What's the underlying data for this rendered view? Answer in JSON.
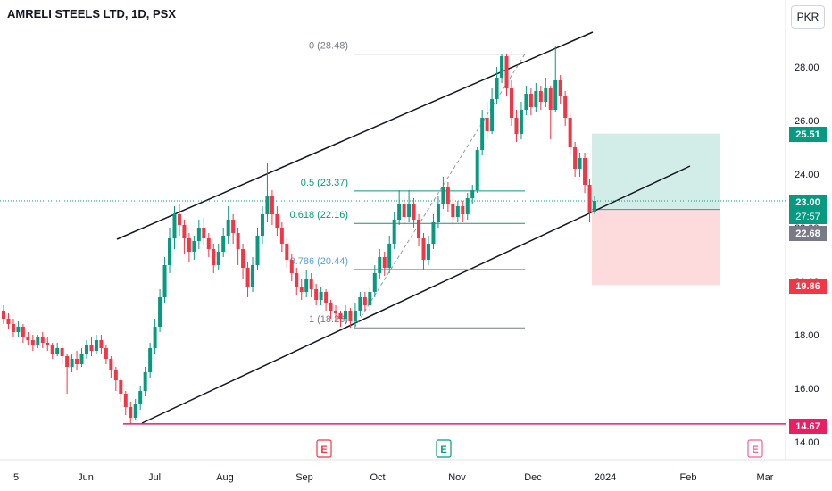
{
  "header": {
    "title": "AMRELI STEELS LTD, 1D, PSX",
    "currency_button": "PKR"
  },
  "chart_data": {
    "type": "candlestick",
    "title": "AMRELI STEELS LTD, 1D, PSX",
    "ylim": [
      13.5,
      30.2
    ],
    "y_ticks": [
      "14.00",
      "16.00",
      "18.00",
      "20.00",
      "22.00",
      "24.00",
      "26.00",
      "28.00"
    ],
    "x_ticks": [
      "5",
      "Jun",
      "Jul",
      "Aug",
      "Sep",
      "Oct",
      "Nov",
      "Dec",
      "2024",
      "Feb",
      "Mar"
    ],
    "candles": [
      [
        18.9,
        18.6,
        19.1,
        18.4
      ],
      [
        18.6,
        18.4,
        18.8,
        18.2
      ],
      [
        18.4,
        18.1,
        18.6,
        17.9
      ],
      [
        18.1,
        18.3,
        18.5,
        17.9
      ],
      [
        18.3,
        17.9,
        18.4,
        17.7
      ],
      [
        17.9,
        17.8,
        18.1,
        17.6
      ],
      [
        17.8,
        17.6,
        18.0,
        17.4
      ],
      [
        17.6,
        17.9,
        18.0,
        17.5
      ],
      [
        17.9,
        17.7,
        18.1,
        17.5
      ],
      [
        17.7,
        17.6,
        17.9,
        17.4
      ],
      [
        17.6,
        17.3,
        17.7,
        17.1
      ],
      [
        17.3,
        17.5,
        17.7,
        17.2
      ],
      [
        17.5,
        17.2,
        17.6,
        16.9
      ],
      [
        17.2,
        16.8,
        17.3,
        15.8
      ],
      [
        16.8,
        17.1,
        17.3,
        16.6
      ],
      [
        17.1,
        16.9,
        17.4,
        16.7
      ],
      [
        16.9,
        17.3,
        17.5,
        16.8
      ],
      [
        17.3,
        17.6,
        17.8,
        17.1
      ],
      [
        17.6,
        17.4,
        17.9,
        17.2
      ],
      [
        17.4,
        17.8,
        18.0,
        17.3
      ],
      [
        17.8,
        17.5,
        18.0,
        17.3
      ],
      [
        17.5,
        17.1,
        17.6,
        16.9
      ],
      [
        17.1,
        16.7,
        17.2,
        16.4
      ],
      [
        16.7,
        16.3,
        16.8,
        15.9
      ],
      [
        16.3,
        15.8,
        16.4,
        15.5
      ],
      [
        15.8,
        15.3,
        15.9,
        15.0
      ],
      [
        15.3,
        14.9,
        15.5,
        14.67
      ],
      [
        14.9,
        15.4,
        15.6,
        14.8
      ],
      [
        15.4,
        15.9,
        16.1,
        15.2
      ],
      [
        15.9,
        16.6,
        16.8,
        15.7
      ],
      [
        16.6,
        17.5,
        17.7,
        16.4
      ],
      [
        17.5,
        18.3,
        18.6,
        17.3
      ],
      [
        18.3,
        19.4,
        19.7,
        18.1
      ],
      [
        19.4,
        20.6,
        20.9,
        19.2
      ],
      [
        20.6,
        21.6,
        22.0,
        20.3
      ],
      [
        21.6,
        22.5,
        22.8,
        21.2
      ],
      [
        22.5,
        22.1,
        22.9,
        21.7
      ],
      [
        22.1,
        21.6,
        22.3,
        21.0
      ],
      [
        21.6,
        21.1,
        21.8,
        20.7
      ],
      [
        21.1,
        21.5,
        21.7,
        20.8
      ],
      [
        21.5,
        22.0,
        22.3,
        21.2
      ],
      [
        22.0,
        21.6,
        22.4,
        21.3
      ],
      [
        21.6,
        21.2,
        21.8,
        20.9
      ],
      [
        21.2,
        20.6,
        21.4,
        20.3
      ],
      [
        20.6,
        21.1,
        21.4,
        20.4
      ],
      [
        21.1,
        21.7,
        22.0,
        20.9
      ],
      [
        21.7,
        22.3,
        22.8,
        21.4
      ],
      [
        22.3,
        21.8,
        22.5,
        21.4
      ],
      [
        21.8,
        21.2,
        22.0,
        20.6
      ],
      [
        21.2,
        20.5,
        21.4,
        20.1
      ],
      [
        20.5,
        19.8,
        20.7,
        19.4
      ],
      [
        19.8,
        20.6,
        20.9,
        19.6
      ],
      [
        20.6,
        21.7,
        22.0,
        20.4
      ],
      [
        21.7,
        22.5,
        22.8,
        21.4
      ],
      [
        22.5,
        23.2,
        24.4,
        22.2
      ],
      [
        23.2,
        22.5,
        23.4,
        22.1
      ],
      [
        22.5,
        22.0,
        22.8,
        21.7
      ],
      [
        22.0,
        21.4,
        22.2,
        21.1
      ],
      [
        21.4,
        20.8,
        21.6,
        20.5
      ],
      [
        20.8,
        20.3,
        21.0,
        20.0
      ],
      [
        20.3,
        19.8,
        20.5,
        19.5
      ],
      [
        19.8,
        19.6,
        20.1,
        19.3
      ],
      [
        19.6,
        20.1,
        20.4,
        19.4
      ],
      [
        20.1,
        19.7,
        20.3,
        19.4
      ],
      [
        19.7,
        19.3,
        19.9,
        19.1
      ],
      [
        19.3,
        19.6,
        19.8,
        19.1
      ],
      [
        19.6,
        19.2,
        19.7,
        18.9
      ],
      [
        19.2,
        18.9,
        19.3,
        18.6
      ],
      [
        18.9,
        18.8,
        19.1,
        18.5
      ],
      [
        18.8,
        18.6,
        18.9,
        18.3
      ],
      [
        18.6,
        18.9,
        19.1,
        18.4
      ],
      [
        18.9,
        18.5,
        19.0,
        18.26
      ],
      [
        18.5,
        18.9,
        19.2,
        18.3
      ],
      [
        18.9,
        19.4,
        19.6,
        18.7
      ],
      [
        19.4,
        19.1,
        19.6,
        18.9
      ],
      [
        19.1,
        19.6,
        19.8,
        18.9
      ],
      [
        19.6,
        20.3,
        20.6,
        19.4
      ],
      [
        20.3,
        20.9,
        21.2,
        20.1
      ],
      [
        20.9,
        20.5,
        21.1,
        20.2
      ],
      [
        20.5,
        21.4,
        21.7,
        20.3
      ],
      [
        21.4,
        22.3,
        22.6,
        21.2
      ],
      [
        22.3,
        22.9,
        23.4,
        22.1
      ],
      [
        22.9,
        22.4,
        23.1,
        22.1
      ],
      [
        22.4,
        22.9,
        23.4,
        22.2
      ],
      [
        22.9,
        22.3,
        23.1,
        22.0
      ],
      [
        22.3,
        21.6,
        22.5,
        21.3
      ],
      [
        21.6,
        20.8,
        21.8,
        20.4
      ],
      [
        20.8,
        21.4,
        21.7,
        20.6
      ],
      [
        21.4,
        22.2,
        22.5,
        21.2
      ],
      [
        22.2,
        22.9,
        23.2,
        22.0
      ],
      [
        22.9,
        23.5,
        23.9,
        22.7
      ],
      [
        23.5,
        22.9,
        23.7,
        22.6
      ],
      [
        22.9,
        22.4,
        23.1,
        22.1
      ],
      [
        22.4,
        22.8,
        23.0,
        22.2
      ],
      [
        22.8,
        22.5,
        23.0,
        22.2
      ],
      [
        22.5,
        23.1,
        23.3,
        22.3
      ],
      [
        23.1,
        23.4,
        23.6,
        22.9
      ],
      [
        23.4,
        24.9,
        25.0,
        23.3
      ],
      [
        24.9,
        26.1,
        26.4,
        24.7
      ],
      [
        26.1,
        25.6,
        26.7,
        25.3
      ],
      [
        25.6,
        26.8,
        27.2,
        25.5
      ],
      [
        26.8,
        27.6,
        28.0,
        26.6
      ],
      [
        27.6,
        28.4,
        28.48,
        27.4
      ],
      [
        28.4,
        27.2,
        28.5,
        26.9
      ],
      [
        27.2,
        26.1,
        27.5,
        25.8
      ],
      [
        26.1,
        25.5,
        26.4,
        25.2
      ],
      [
        25.5,
        26.4,
        26.7,
        25.3
      ],
      [
        26.4,
        27.0,
        27.3,
        26.2
      ],
      [
        27.0,
        26.5,
        27.2,
        26.2
      ],
      [
        26.5,
        27.1,
        27.4,
        26.3
      ],
      [
        27.1,
        26.7,
        27.3,
        26.4
      ],
      [
        26.7,
        27.2,
        27.6,
        26.5
      ],
      [
        27.2,
        26.4,
        27.3,
        25.3
      ],
      [
        26.4,
        27.5,
        28.8,
        26.3
      ],
      [
        27.5,
        26.9,
        27.7,
        26.6
      ],
      [
        26.9,
        26.1,
        27.1,
        25.8
      ],
      [
        26.1,
        25.0,
        26.3,
        24.7
      ],
      [
        25.0,
        24.2,
        25.2,
        23.9
      ],
      [
        24.2,
        24.6,
        24.8,
        23.9
      ],
      [
        24.6,
        23.6,
        24.8,
        23.3
      ],
      [
        23.6,
        22.6,
        23.8,
        22.2
      ],
      [
        22.6,
        23.0,
        23.2,
        22.5
      ]
    ],
    "fib_levels": [
      {
        "label": "0 (28.48)",
        "value": 28.48
      },
      {
        "label": "0.5 (23.37)",
        "value": 23.37
      },
      {
        "label": "0.618 (22.16)",
        "value": 22.16
      },
      {
        "label": "0.786 (20.44)",
        "value": 20.44
      },
      {
        "label": "1 (18.26)",
        "value": 18.26
      }
    ],
    "horizontal_line": {
      "value": 14.67,
      "color": "#e91e63"
    },
    "current_price": {
      "value": "23.00",
      "countdown": "27:57"
    },
    "price_labels": [
      {
        "value": "25.51",
        "numeric": 25.51,
        "color": "#089981"
      },
      {
        "value": "22.68",
        "numeric": 22.68,
        "color": "#787b86"
      },
      {
        "value": "19.86",
        "numeric": 19.86,
        "color": "#f23645"
      },
      {
        "value": "14.67",
        "numeric": 14.67,
        "color": "#e91e63"
      }
    ],
    "events": [
      {
        "label": "E",
        "at": "Sep"
      },
      {
        "label": "E",
        "at": "Nov"
      },
      {
        "label": "E",
        "at": "Mar"
      }
    ],
    "colors": {
      "up": "#089981",
      "down": "#f23645"
    }
  }
}
